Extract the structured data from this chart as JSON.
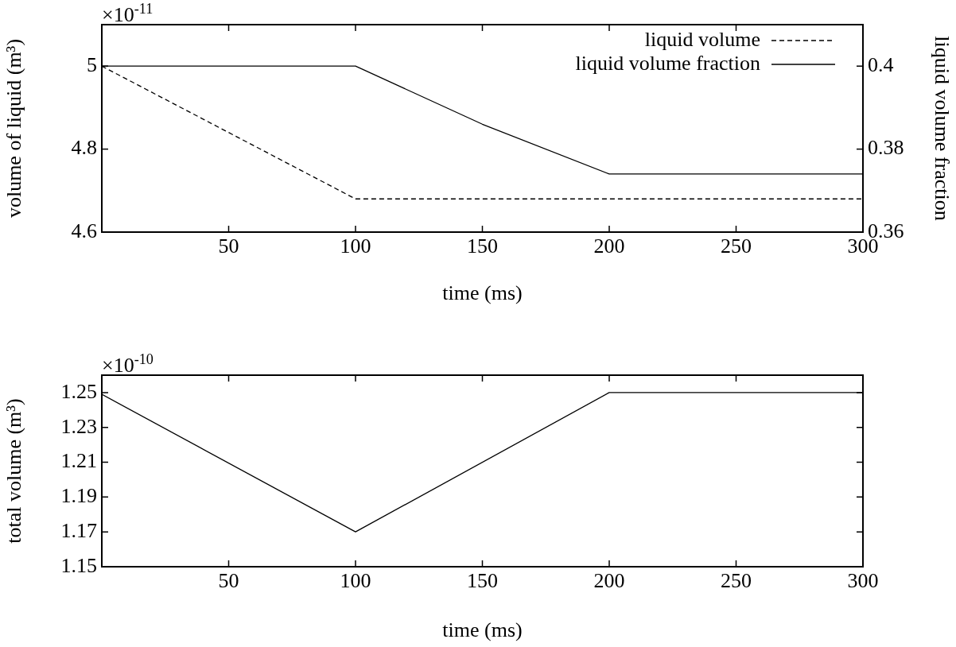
{
  "chart_data": [
    {
      "type": "line",
      "xlabel": "time (ms)",
      "ylabel": "volume of liquid (m³)",
      "y2label": "liquid volume fraction",
      "x": [
        0,
        100,
        150,
        200,
        300
      ],
      "series": [
        {
          "name": "liquid volume",
          "color": "#000000",
          "line_style": "dashed",
          "values": [
            5,
            4.68,
            4.68,
            4.68,
            4.68
          ]
        },
        {
          "name": "liquid volume fraction",
          "color": "#000000",
          "axis": "y2",
          "values": [
            0.4,
            0.4,
            0.386,
            0.374,
            0.374
          ]
        }
      ],
      "xlim": [
        0,
        300
      ],
      "xticks": [
        50,
        100,
        150,
        200,
        250,
        300
      ],
      "ylim": [
        4.6,
        5.1
      ],
      "yticks": [
        4.6,
        4.8,
        5
      ],
      "y2lim": [
        0.36,
        0.41
      ],
      "y2ticks": [
        0.36,
        0.38,
        0.4
      ],
      "grid": false,
      "legend": "top right",
      "annotations": [
        "×10$^{-11}$"
      ]
    },
    {
      "type": "line",
      "xlabel": "time (ms)",
      "ylabel": "total volume (m³)",
      "x": [
        0,
        100,
        200,
        300
      ],
      "series": [
        {
          "color": "#000000",
          "values": [
            1.249,
            1.17,
            1.25,
            1.25
          ]
        }
      ],
      "xlim": [
        0,
        300
      ],
      "xticks": [
        50,
        100,
        150,
        200,
        250,
        300
      ],
      "ylim": [
        1.15,
        1.26
      ],
      "yticks": [
        1.15,
        1.17,
        1.19,
        1.21,
        1.23,
        1.25
      ],
      "grid": false,
      "legend": false,
      "annotations": [
        "×10$^{-10}$"
      ]
    }
  ]
}
